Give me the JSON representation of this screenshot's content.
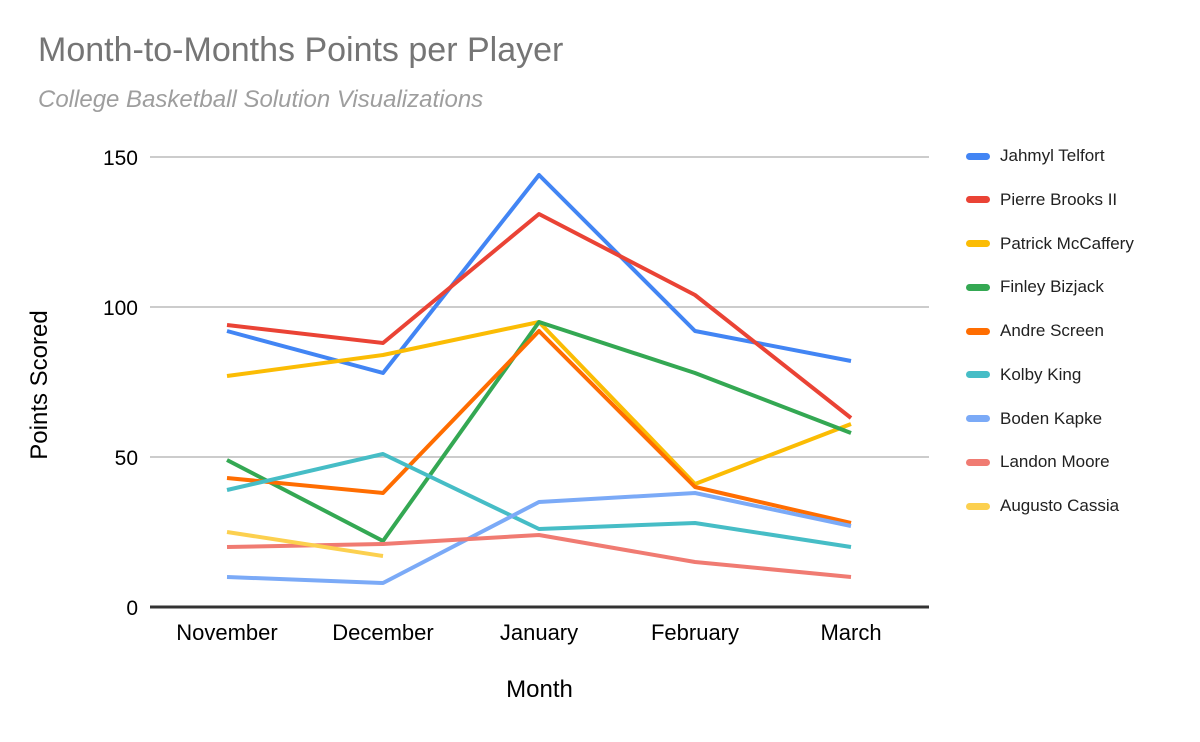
{
  "chart": {
    "title": "Month-to-Months Points per Player",
    "subtitle": "College Basketball Solution Visualizations",
    "x_axis_title": "Month",
    "y_axis_title": "Points Scored"
  },
  "chart_data": {
    "type": "line",
    "title": "Month-to-Months Points per Player",
    "subtitle": "College Basketball Solution Visualizations",
    "xlabel": "Month",
    "ylabel": "Points Scored",
    "categories": [
      "November",
      "December",
      "January",
      "February",
      "March"
    ],
    "yticks": [
      0,
      50,
      100,
      150
    ],
    "ylim": [
      0,
      150
    ],
    "grid": true,
    "legend_position": "right",
    "series": [
      {
        "name": "Jahmyl Telfort",
        "color": "#4285F4",
        "values": [
          92,
          78,
          144,
          92,
          82
        ]
      },
      {
        "name": "Pierre Brooks II",
        "color": "#EA4335",
        "values": [
          94,
          88,
          131,
          104,
          63
        ]
      },
      {
        "name": "Patrick McCaffery",
        "color": "#FBBC04",
        "values": [
          77,
          84,
          95,
          41,
          61
        ]
      },
      {
        "name": "Finley Bizjack",
        "color": "#34A853",
        "values": [
          49,
          22,
          95,
          78,
          58
        ]
      },
      {
        "name": "Andre Screen",
        "color": "#FF6D01",
        "values": [
          43,
          38,
          92,
          40,
          28
        ]
      },
      {
        "name": "Kolby King",
        "color": "#46BDC6",
        "values": [
          39,
          51,
          26,
          28,
          20
        ]
      },
      {
        "name": "Boden Kapke",
        "color": "#7BAAF7",
        "values": [
          10,
          8,
          35,
          38,
          27
        ]
      },
      {
        "name": "Landon Moore",
        "color": "#F07B72",
        "values": [
          20,
          21,
          24,
          15,
          10
        ]
      },
      {
        "name": "Augusto Cassia",
        "color": "#FCD04F",
        "values": [
          25,
          17,
          null,
          null,
          null
        ]
      }
    ],
    "colors": {
      "gridline": "#cccccc",
      "axis_line": "#333333",
      "title_text": "#757575",
      "subtitle_text": "#9e9e9e",
      "label_text": "#000000",
      "legend_text": "#212121",
      "background": "#ffffff"
    }
  }
}
